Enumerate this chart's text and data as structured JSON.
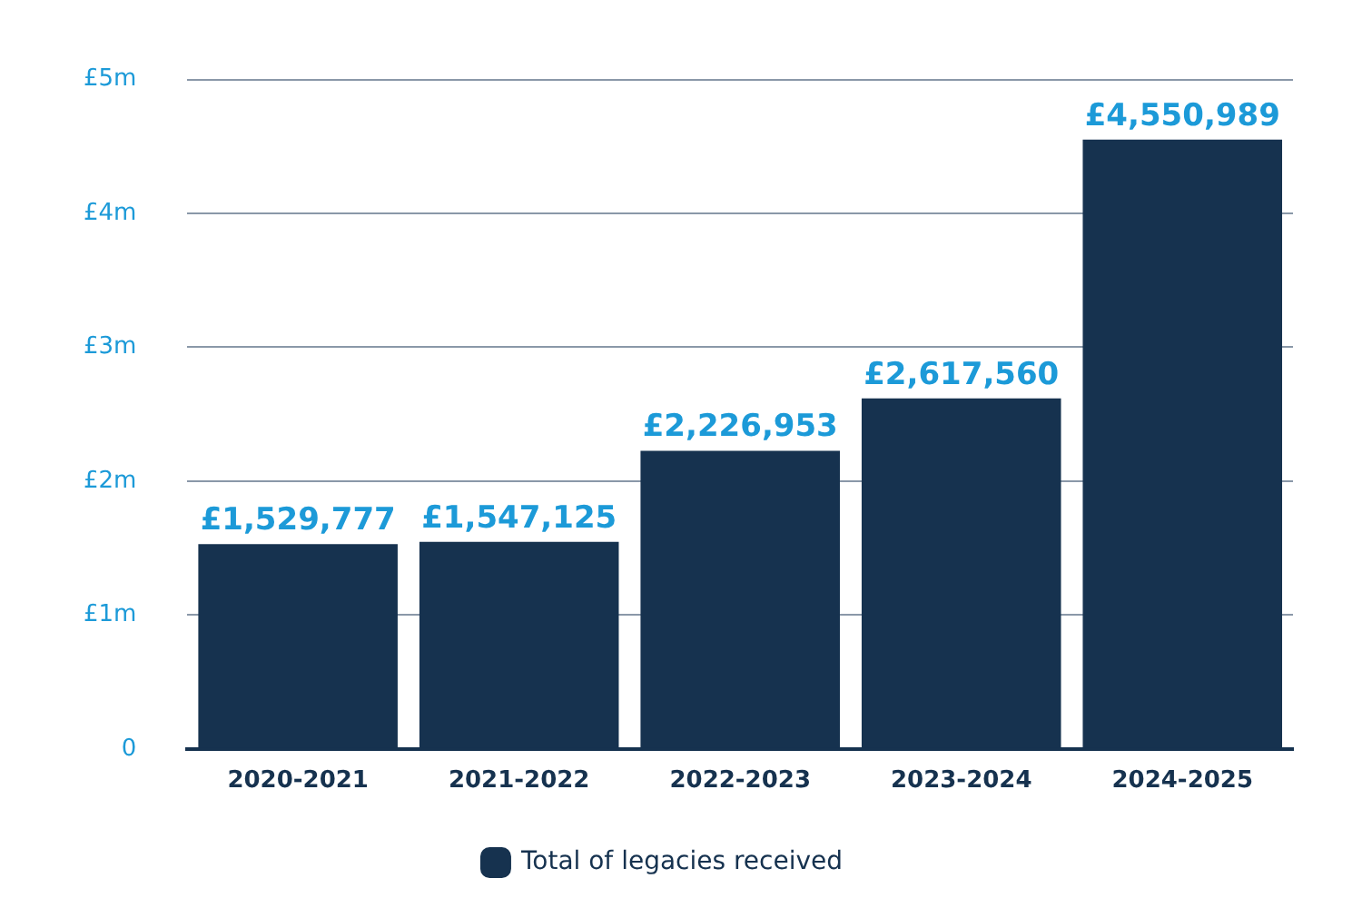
{
  "chart_data": {
    "type": "bar",
    "categories": [
      "2020-2021",
      "2021-2022",
      "2022-2023",
      "2023-2024",
      "2024-2025"
    ],
    "series": [
      {
        "name": "Total of legacies received",
        "color": "#16324f",
        "values": [
          1529777,
          1547125,
          2226953,
          2617560,
          4550989
        ],
        "value_labels": [
          "£1,529,777",
          "£1,547,125",
          "£2,226,953",
          "£2,617,560",
          "£4,550,989"
        ]
      }
    ],
    "ylim": [
      0,
      5000000
    ],
    "yticks": [
      0,
      {
        "value": 1000000,
        "label": "£1m"
      },
      {
        "value": 2000000,
        "label": "£2m"
      },
      {
        "value": 3000000,
        "label": "£3m"
      },
      {
        "value": 4000000,
        "label": "£4m"
      },
      {
        "value": 5000000,
        "label": "£5m"
      }
    ],
    "grid": "y",
    "legend": "bottom"
  }
}
